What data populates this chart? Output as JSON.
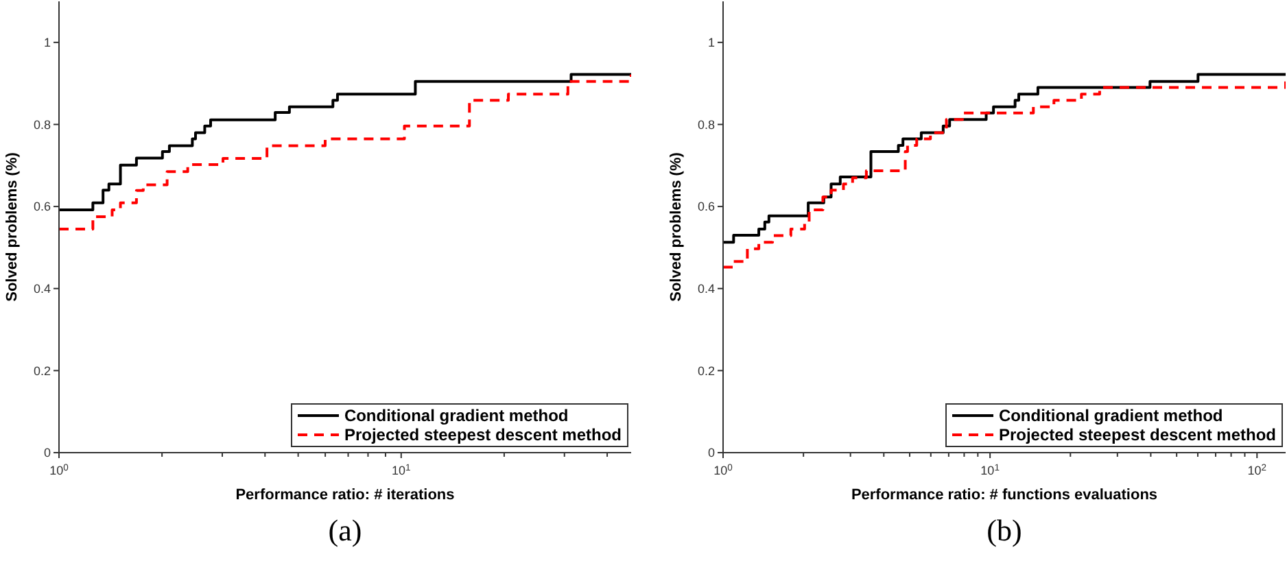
{
  "chart_data": [
    {
      "type": "step",
      "xlabel": "Performance ratio: # iterations",
      "ylabel": "Solved problems (%)",
      "log": "x",
      "xlim": [
        1,
        47
      ],
      "ylim": [
        0,
        1.1
      ],
      "xticks": [
        {
          "value": 1,
          "label": "10$^{0}$"
        },
        {
          "value": 2,
          "label": null
        },
        {
          "value": 3,
          "label": null
        },
        {
          "value": 4,
          "label": null
        },
        {
          "value": 5,
          "label": null
        },
        {
          "value": 6,
          "label": null
        },
        {
          "value": 7,
          "label": null
        },
        {
          "value": 8,
          "label": null
        },
        {
          "value": 9,
          "label": null
        },
        {
          "value": 10,
          "label": "10$^{1}$"
        },
        {
          "value": 20,
          "label": null
        },
        {
          "value": 30,
          "label": null
        },
        {
          "value": 40,
          "label": null
        }
      ],
      "yticks": [
        0,
        0.2,
        0.4,
        0.6,
        0.8,
        1
      ],
      "legend": "bottom right",
      "annotations": [
        "(a)"
      ],
      "series": [
        {
          "name": "Conditional gradient method",
          "color": "#000000",
          "line_style": "solid",
          "x": [
            1,
            1.256,
            1.345,
            1.399,
            1.512,
            1.684,
            2.006,
            2.102,
            2.453,
            2.506,
            2.666,
            2.774,
            4.284,
            4.714,
            6.317,
            6.515,
            11.0,
            31.38,
            47
          ],
          "values": [
            0.592,
            0.609,
            0.64,
            0.655,
            0.701,
            0.718,
            0.734,
            0.748,
            0.765,
            0.78,
            0.796,
            0.811,
            0.829,
            0.843,
            0.859,
            0.874,
            0.905,
            0.922,
            0.922
          ]
        },
        {
          "name": "Projected steepest descent method",
          "color": "#ff0000",
          "line_style": "dashed",
          "x": [
            1,
            1.256,
            1.43,
            1.512,
            1.684,
            1.763,
            2.07,
            2.378,
            3.015,
            4.053,
            5.996,
            10.22,
            15.83,
            20.57,
            30.71,
            47
          ],
          "values": [
            0.545,
            0.575,
            0.592,
            0.609,
            0.639,
            0.653,
            0.685,
            0.702,
            0.717,
            0.748,
            0.765,
            0.796,
            0.859,
            0.874,
            0.905,
            0.922
          ]
        }
      ]
    },
    {
      "type": "step",
      "xlabel": "Performance ratio: # functions evaluations",
      "ylabel": "Solved problems (%)",
      "log": "x",
      "xlim": [
        1,
        128
      ],
      "ylim": [
        0,
        1.1
      ],
      "xticks": [
        {
          "value": 1,
          "label": "10$^{0}$"
        },
        {
          "value": 2,
          "label": null
        },
        {
          "value": 3,
          "label": null
        },
        {
          "value": 4,
          "label": null
        },
        {
          "value": 5,
          "label": null
        },
        {
          "value": 6,
          "label": null
        },
        {
          "value": 7,
          "label": null
        },
        {
          "value": 8,
          "label": null
        },
        {
          "value": 9,
          "label": null
        },
        {
          "value": 10,
          "label": "10$^{1}$"
        },
        {
          "value": 20,
          "label": null
        },
        {
          "value": 30,
          "label": null
        },
        {
          "value": 40,
          "label": null
        },
        {
          "value": 50,
          "label": null
        },
        {
          "value": 60,
          "label": null
        },
        {
          "value": 70,
          "label": null
        },
        {
          "value": 80,
          "label": null
        },
        {
          "value": 90,
          "label": null
        },
        {
          "value": 100,
          "label": "10$^{2}$"
        }
      ],
      "yticks": [
        0,
        0.2,
        0.4,
        0.6,
        0.8,
        1
      ],
      "legend": "bottom right",
      "annotations": [
        "(b)"
      ],
      "series": [
        {
          "name": "Conditional gradient method",
          "color": "#000000",
          "line_style": "solid",
          "x": [
            1,
            1.095,
            1.361,
            1.433,
            1.485,
            2.084,
            2.384,
            2.539,
            2.747,
            3.579,
            4.536,
            4.718,
            5.525,
            6.675,
            7.056,
            9.674,
            10.3,
            12.41,
            12.81,
            15.11,
            39.74,
            60.13,
            128
          ],
          "values": [
            0.513,
            0.53,
            0.545,
            0.562,
            0.577,
            0.609,
            0.623,
            0.655,
            0.672,
            0.734,
            0.749,
            0.765,
            0.78,
            0.796,
            0.812,
            0.828,
            0.843,
            0.859,
            0.874,
            0.89,
            0.905,
            0.922,
            0.922
          ]
        },
        {
          "name": "Projected steepest descent method",
          "color": "#ff0000",
          "line_style": "dashed",
          "x": [
            1,
            1.095,
            1.233,
            1.361,
            1.532,
            1.794,
            2.02,
            2.101,
            2.365,
            2.539,
            2.824,
            3.056,
            3.441,
            4.813,
            4.909,
            5.313,
            5.979,
            6.864,
            7.883,
            14.53,
            17.35,
            21.99,
            25.74,
            128
          ],
          "values": [
            0.452,
            0.466,
            0.497,
            0.513,
            0.529,
            0.545,
            0.562,
            0.592,
            0.623,
            0.64,
            0.655,
            0.67,
            0.687,
            0.734,
            0.749,
            0.765,
            0.78,
            0.812,
            0.828,
            0.843,
            0.859,
            0.874,
            0.89,
            0.905
          ]
        }
      ]
    }
  ]
}
